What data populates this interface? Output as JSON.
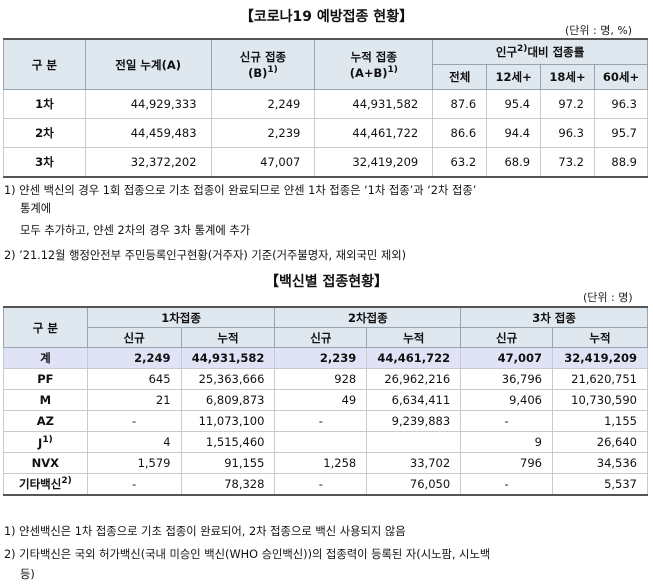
{
  "title1": "【코로나19 예방접종 현황】",
  "unit1": "(단위 : 명, %)",
  "table1": {
    "h_gubun": "구 분",
    "h_prev": "전일 누계(A)",
    "h_new_a": "신규 접종",
    "h_new_b": "(B)",
    "h_new_sup": "1)",
    "h_cum_a": "누적 접종",
    "h_cum_b": "(A+B)",
    "h_cum_sup": "1)",
    "h_pop": "인구",
    "h_pop_sup": "2)",
    "h_pop_rest": "대비 접종률",
    "h_all": "전체",
    "h_12": "12세+",
    "h_18": "18세+",
    "h_60": "60세+",
    "rows": [
      {
        "label": "1차",
        "prev": "44,929,333",
        "new": "2,249",
        "cum": "44,931,582",
        "all": "87.6",
        "a12": "95.4",
        "a18": "97.2",
        "a60": "96.3"
      },
      {
        "label": "2차",
        "prev": "44,459,483",
        "new": "2,239",
        "cum": "44,461,722",
        "all": "86.6",
        "a12": "94.4",
        "a18": "96.3",
        "a60": "95.7"
      },
      {
        "label": "3차",
        "prev": "32,372,202",
        "new": "47,007",
        "cum": "32,419,209",
        "all": "63.2",
        "a12": "68.9",
        "a18": "73.2",
        "a60": "88.9"
      }
    ]
  },
  "notes1": {
    "n1a": "1) 얀센 백신의 경우 1회 접종으로 기초 접종이 완료되므로 얀센 1차 접종은 ‘1차 접종’과 ‘2차 접종’",
    "n1b": "통계에",
    "n1c": "모두 추가하고, 얀센 2차의 경우 3차 통계에 추가",
    "n2": "2) ’21.12월 행정안전부 주민등록인구현황(거주자) 기준(거주불명자, 재외국민 제외)"
  },
  "title2": "【백신별 접종현황】",
  "unit2": "(단위 : 명)",
  "table2": {
    "h_gubun": "구 분",
    "h_d1": "1차접종",
    "h_d2": "2차접종",
    "h_d3": "3차 접종",
    "h_new": "신규",
    "h_cum": "누적",
    "rows": [
      {
        "label": "계",
        "sup": "",
        "d1n": "2,249",
        "d1c": "44,931,582",
        "d2n": "2,239",
        "d2c": "44,461,722",
        "d3n": "47,007",
        "d3c": "32,419,209"
      },
      {
        "label": "PF",
        "sup": "",
        "d1n": "645",
        "d1c": "25,363,666",
        "d2n": "928",
        "d2c": "26,962,216",
        "d3n": "36,796",
        "d3c": "21,620,751"
      },
      {
        "label": "M",
        "sup": "",
        "d1n": "21",
        "d1c": "6,809,873",
        "d2n": "49",
        "d2c": "6,634,411",
        "d3n": "9,406",
        "d3c": "10,730,590"
      },
      {
        "label": "AZ",
        "sup": "",
        "d1n": "-",
        "d1c": "11,073,100",
        "d2n": "-",
        "d2c": "9,239,883",
        "d3n": "-",
        "d3c": "1,155"
      },
      {
        "label": "J",
        "sup": "1)",
        "d1n": "4",
        "d1c": "1,515,460",
        "d2n": "",
        "d2c": "",
        "d3n": "9",
        "d3c": "26,640"
      },
      {
        "label": "NVX",
        "sup": "",
        "d1n": "1,579",
        "d1c": "91,155",
        "d2n": "1,258",
        "d2c": "33,702",
        "d3n": "796",
        "d3c": "34,536"
      },
      {
        "label": "기타백신",
        "sup": "2)",
        "d1n": "-",
        "d1c": "78,328",
        "d2n": "-",
        "d2c": "76,050",
        "d3n": "-",
        "d3c": "5,537"
      }
    ]
  },
  "notes2": {
    "n1": "1) 얀센백신은 1차 접종으로 기초 접종이 완료되어, 2차 접종으로 백신 사용되지 않음",
    "n2a": "2) 기타백신은 국외 허가백신(국내 미승인 백신(WHO 승인백신))의 접종력이 등록된 자(시노팜, 시노백",
    "n2b": "등)"
  }
}
